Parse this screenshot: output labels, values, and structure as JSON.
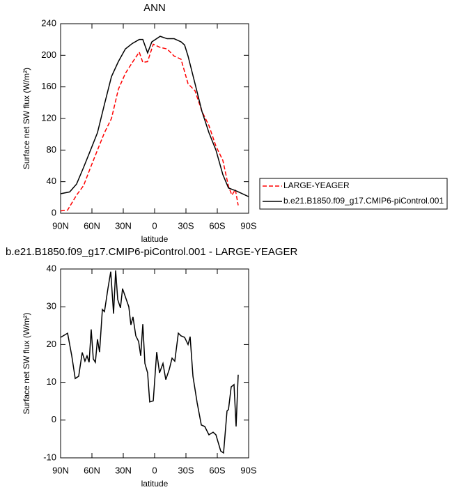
{
  "chart_data": [
    {
      "type": "line",
      "title": "ANN",
      "xlabel": "latitude",
      "ylabel": "Surface net SW flux (W/m²)",
      "xlim": [
        90,
        -90
      ],
      "ylim": [
        0,
        240
      ],
      "xticks": [
        {
          "value": 90,
          "label": "90N"
        },
        {
          "value": 60,
          "label": "60N"
        },
        {
          "value": 30,
          "label": "30N"
        },
        0,
        {
          "value": -30,
          "label": "30S"
        },
        {
          "value": -60,
          "label": "60S"
        },
        {
          "value": -90,
          "label": "90S"
        }
      ],
      "yticks": [
        0,
        40,
        80,
        120,
        160,
        200,
        240
      ],
      "legend": "right",
      "series": [
        {
          "name": "LARGE-YEAGER",
          "color": "#ff0000",
          "dash": "dashed",
          "x": [
            90,
            83.3,
            74.7,
            68,
            61.3,
            54.7,
            48,
            41.3,
            34.7,
            28,
            21.3,
            14.7,
            11.3,
            6.7,
            1.3,
            -5.3,
            -12,
            -18.7,
            -25.3,
            -32,
            -38.7,
            -45.3,
            -52,
            -58.7,
            -65.3,
            -70.7,
            -74,
            -77.3,
            -80
          ],
          "values": [
            3,
            4,
            23,
            35,
            58,
            80,
            102,
            120,
            157,
            177,
            191,
            204,
            191,
            192,
            214,
            210,
            208,
            199,
            195,
            164,
            155,
            129,
            111,
            85,
            67,
            34,
            23,
            30,
            10
          ]
        },
        {
          "name": "b.e21.B1850.f09_g17.CMIP6-piControl.001",
          "color": "#000000",
          "dash": "solid",
          "x": [
            90,
            81.3,
            74.7,
            68,
            61.3,
            54.7,
            48,
            41.3,
            34.7,
            28,
            21.3,
            14.7,
            11.3,
            6.7,
            2.7,
            -5.3,
            -12,
            -18.7,
            -25.3,
            -28.7,
            -32,
            -38.7,
            -45.3,
            -52,
            -58.7,
            -65.3,
            -70.7,
            -78.7,
            -90
          ],
          "values": [
            24.7,
            27,
            37,
            58,
            80,
            102,
            138,
            173,
            192,
            208,
            215,
            220,
            220,
            203,
            217,
            224,
            221,
            221,
            217,
            213,
            199,
            164,
            129,
            102,
            80,
            49,
            32,
            28,
            21
          ]
        }
      ]
    },
    {
      "type": "line",
      "title": "b.e21.B1850.f09_g17.CMIP6-piControl.001 - LARGE-YEAGER",
      "xlabel": "latitude",
      "ylabel": "Surface net SW flux (W/m²)",
      "xlim": [
        90,
        -90
      ],
      "ylim": [
        -10,
        40
      ],
      "xticks": [
        {
          "value": 90,
          "label": "90N"
        },
        {
          "value": 60,
          "label": "60N"
        },
        {
          "value": 30,
          "label": "30N"
        },
        0,
        {
          "value": -30,
          "label": "30S"
        },
        {
          "value": -60,
          "label": "60S"
        },
        {
          "value": -90,
          "label": "90S"
        }
      ],
      "yticks": [
        -10,
        0,
        10,
        20,
        30,
        40
      ],
      "series": [
        {
          "color": "#000000",
          "dash": "solid",
          "x": [
            90,
            83.3,
            79.3,
            76,
            72.7,
            69.3,
            66.7,
            64.7,
            62.7,
            60.7,
            58.7,
            56.7,
            54.7,
            52.7,
            50,
            48,
            44.7,
            42,
            39.3,
            37.3,
            35.3,
            32.7,
            30.7,
            24.7,
            22.7,
            20.7,
            18,
            15.3,
            13.3,
            11.3,
            9.3,
            6.7,
            4.7,
            1.3,
            -2,
            -4.7,
            -8,
            -10.7,
            -14,
            -16.7,
            -19.3,
            -22.7,
            -25.3,
            -28.7,
            -32,
            -34,
            -36.7,
            -40.7,
            -44.7,
            -48,
            -52,
            -56,
            -58.7,
            -63.3,
            -66,
            -69.3,
            -70.7,
            -73.3,
            -76,
            -78,
            -80
          ],
          "values": [
            21.9,
            23,
            17,
            11,
            11.6,
            17.9,
            15.6,
            17,
            15.3,
            24,
            16.2,
            15.3,
            21.4,
            18,
            29.3,
            28.7,
            34.8,
            39.3,
            28.2,
            39.6,
            31.9,
            29.7,
            34.8,
            30,
            25.2,
            27.3,
            22.3,
            20.8,
            17,
            25.4,
            15,
            12.5,
            4.8,
            5.1,
            18,
            12.5,
            15,
            10.7,
            13.4,
            16.4,
            15.6,
            23,
            22.3,
            21.9,
            20,
            22.1,
            11.6,
            4.6,
            -1.3,
            -1.7,
            -3.9,
            -3.2,
            -3.9,
            -8.2,
            -8.7,
            2.4,
            2.8,
            8.8,
            9.4,
            -1.7,
            12
          ]
        }
      ]
    }
  ]
}
